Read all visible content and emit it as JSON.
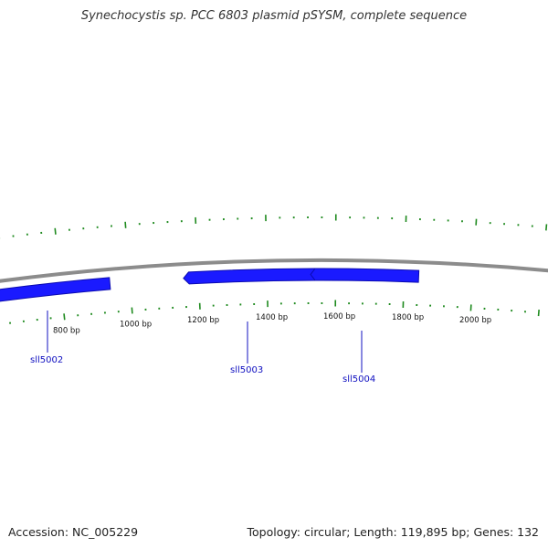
{
  "title": "Synechocystis sp. PCC 6803 plasmid pSYSM, complete sequence",
  "accession": "Accession: NC_005229",
  "summary": "Topology: circular; Length: 119,895 bp; Genes: 132",
  "colors": {
    "backbone": "#8c8c8c",
    "gene": "#1a1aff",
    "gene_dark": "#0b0bb0",
    "tick": "#1e8a1e",
    "gene_label": "#1010c0"
  },
  "ruler_labels": [
    "800 bp",
    "1000 bp",
    "1200 bp",
    "1400 bp",
    "1600 bp",
    "1800 bp",
    "2000 bp"
  ],
  "genes": [
    {
      "name": "sll5002"
    },
    {
      "name": "sll5003"
    },
    {
      "name": "sll5004"
    }
  ]
}
